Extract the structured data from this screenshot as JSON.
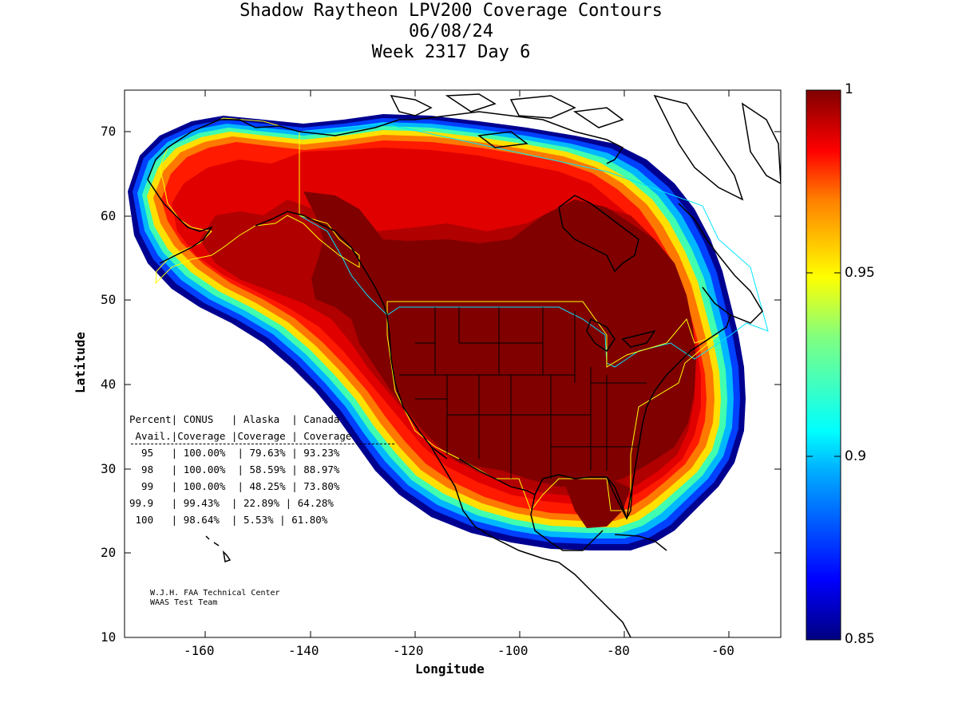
{
  "titles": [
    "Shadow Raytheon LPV200 Coverage Contours",
    "06/08/24",
    "Week 2317 Day 6"
  ],
  "axes": {
    "xlabel": "Longitude",
    "ylabel": "Latitude",
    "xlim": [
      -175,
      -50
    ],
    "ylim": [
      10,
      75
    ],
    "xticks": [
      "-160",
      "-140",
      "-120",
      "-100",
      "-80",
      "-60"
    ],
    "yticks": [
      "10",
      "20",
      "30",
      "40",
      "50",
      "60",
      "70"
    ]
  },
  "colorbar": {
    "ticks": [
      "1",
      "0.95",
      "0.9",
      "0.85"
    ],
    "range": [
      0.85,
      1
    ]
  },
  "stats_table": {
    "header1": "Percent| CONUS   | Alaska  | Canada",
    "header2": " Avail.|Coverage |Coverage | Coverage",
    "rows": [
      "  95   | 100.00%  | 79.63% | 93.23%",
      "  98   | 100.00%  | 58.59% | 88.97%",
      "  99   | 100.00%  | 48.25% | 73.80%",
      "99.9   | 99.43%  | 22.89% | 64.28%",
      " 100   | 98.64%  | 5.53% | 61.80%"
    ]
  },
  "credit": [
    "W.J.H. FAA Technical Center",
    "WAAS Test Team"
  ],
  "colors": {
    "dark_red": "#800000",
    "red": "#ff1a00",
    "cyan_border": "#00e5ff",
    "yellow_border": "#ffff00"
  }
}
